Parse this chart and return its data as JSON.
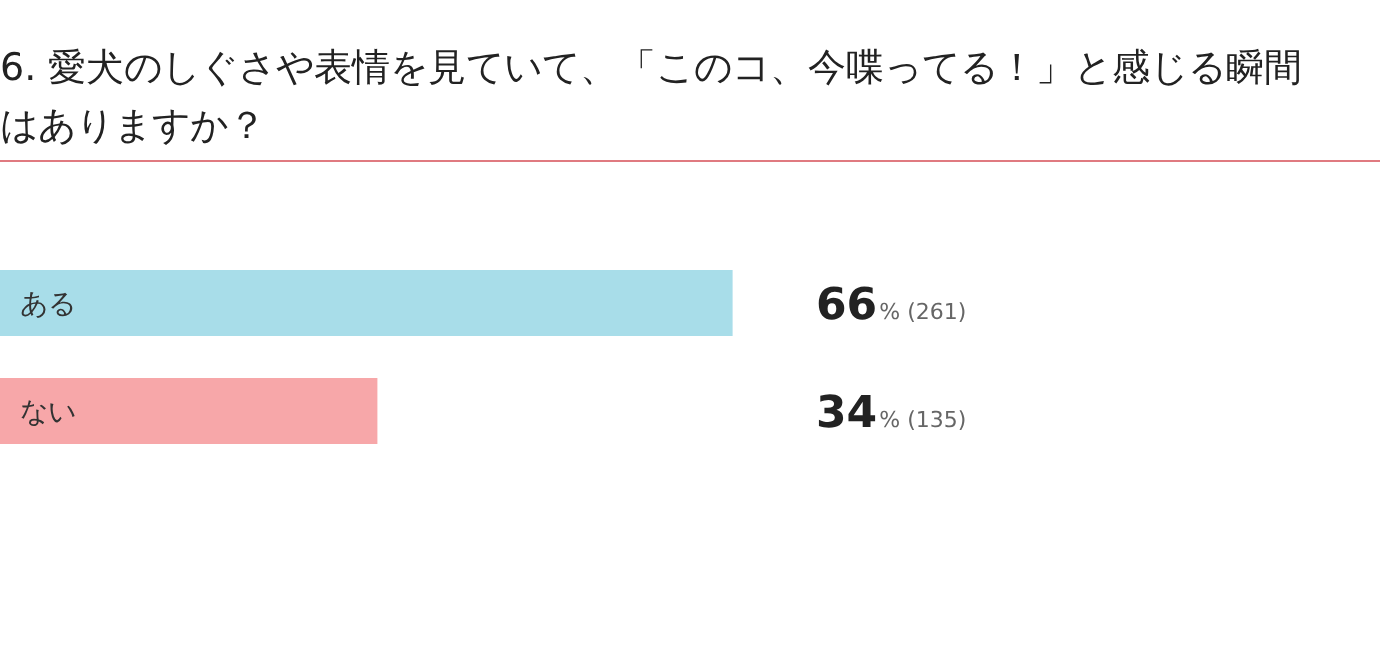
{
  "chart_data": {
    "type": "bar",
    "orientation": "horizontal",
    "title": "6. 愛犬のしぐさや表情を見ていて、「このコ、今喋ってる！」と感じる瞬間はありますか？",
    "categories": [
      "ある",
      "ない"
    ],
    "values": [
      66,
      34
    ],
    "colors": [
      "#a8dde9",
      "#f7a7a9"
    ],
    "value_labels": [
      "66% (261)",
      "34% (135)"
    ]
  }
}
